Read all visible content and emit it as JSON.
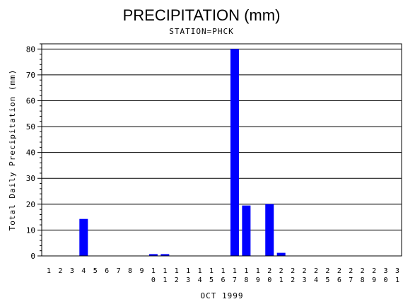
{
  "chart_data": {
    "type": "bar",
    "title": "PRECIPITATION (mm)",
    "subtitle": "STATION=PHCK",
    "xlabel": "OCT 1999",
    "ylabel": "Total Daily Precipitation (mm)",
    "categories": [
      "1",
      "2",
      "3",
      "4",
      "5",
      "6",
      "7",
      "8",
      "9",
      "10",
      "11",
      "12",
      "13",
      "14",
      "15",
      "16",
      "17",
      "18",
      "19",
      "20",
      "21",
      "22",
      "23",
      "24",
      "25",
      "26",
      "27",
      "28",
      "29",
      "30",
      "31"
    ],
    "values": [
      0,
      0,
      0,
      14.3,
      0,
      0,
      0,
      0,
      0,
      0.7,
      0.7,
      0,
      0,
      0,
      0,
      0,
      80,
      19.5,
      0,
      20,
      1.2,
      0,
      0,
      0,
      0,
      0,
      0,
      0,
      0,
      0,
      0
    ],
    "ylim": [
      0,
      82
    ],
    "yticks": [
      0,
      10,
      20,
      30,
      40,
      50,
      60,
      70,
      80
    ],
    "grid": true,
    "bar_color": "#0000ff"
  }
}
